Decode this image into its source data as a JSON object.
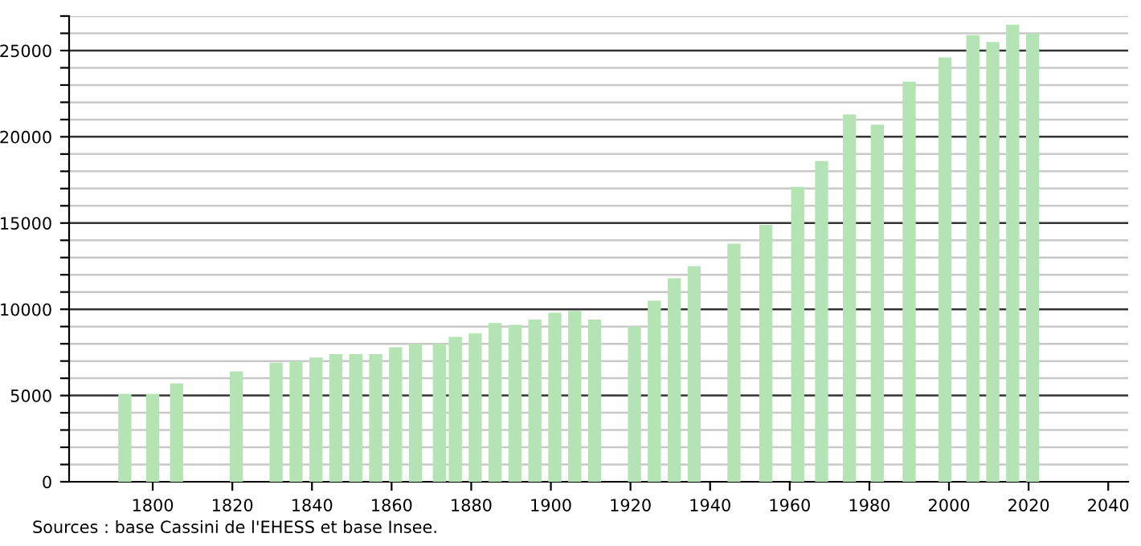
{
  "chart_data": {
    "type": "bar",
    "color": "#b4e4b4",
    "x": [
      1793,
      1800,
      1806,
      1821,
      1831,
      1836,
      1841,
      1846,
      1851,
      1856,
      1861,
      1866,
      1872,
      1876,
      1881,
      1886,
      1891,
      1896,
      1901,
      1906,
      1911,
      1921,
      1926,
      1931,
      1936,
      1946,
      1954,
      1962,
      1968,
      1975,
      1982,
      1990,
      1999,
      2006,
      2011,
      2016,
      2021
    ],
    "values": [
      5100,
      5100,
      5700,
      6400,
      6900,
      7000,
      7200,
      7400,
      7400,
      7400,
      7800,
      8000,
      8000,
      8400,
      8600,
      9200,
      9100,
      9400,
      9800,
      9900,
      9400,
      9000,
      10500,
      11800,
      12500,
      13800,
      14900,
      17100,
      18600,
      21300,
      20700,
      23200,
      24600,
      25900,
      25500,
      26500,
      26000
    ],
    "xlim": [
      1779,
      2045
    ],
    "xticks": [
      1800,
      1820,
      1840,
      1860,
      1880,
      1900,
      1920,
      1940,
      1960,
      1980,
      2000,
      2020,
      2040
    ],
    "ylim": [
      0,
      27000
    ],
    "yticks": [
      0,
      {
        "value": 1000,
        "label": null
      },
      {
        "value": 2000,
        "label": null
      },
      {
        "value": 3000,
        "label": null
      },
      {
        "value": 4000,
        "label": null
      },
      5000,
      {
        "value": 6000,
        "label": null
      },
      {
        "value": 7000,
        "label": null
      },
      {
        "value": 8000,
        "label": null
      },
      {
        "value": 9000,
        "label": null
      },
      10000,
      {
        "value": 11000,
        "label": null
      },
      {
        "value": 12000,
        "label": null
      },
      {
        "value": 13000,
        "label": null
      },
      {
        "value": 14000,
        "label": null
      },
      15000,
      {
        "value": 16000,
        "label": null
      },
      {
        "value": 17000,
        "label": null
      },
      {
        "value": 18000,
        "label": null
      },
      {
        "value": 19000,
        "label": null
      },
      20000,
      {
        "value": 21000,
        "label": null
      },
      {
        "value": 22000,
        "label": null
      },
      {
        "value": 23000,
        "label": null
      },
      {
        "value": 24000,
        "label": null
      },
      25000,
      {
        "value": 26000,
        "label": null
      },
      {
        "value": 27000,
        "label": null
      }
    ],
    "grid": "y",
    "annotations": [
      "Sources : base Cassini de l'EHESS et base Insee."
    ]
  }
}
